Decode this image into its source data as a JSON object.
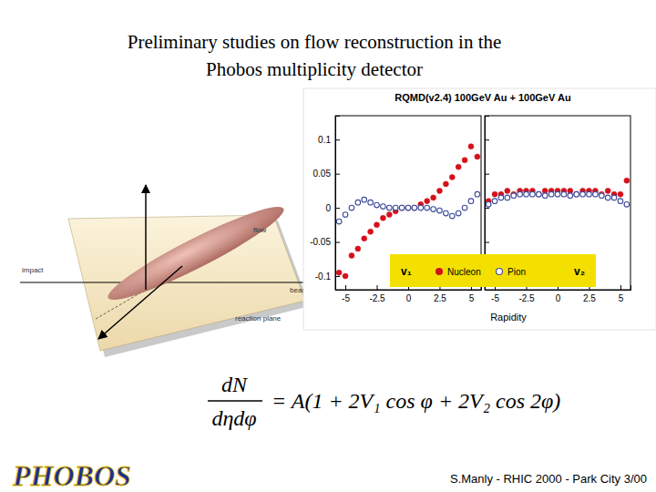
{
  "slide": {
    "title": [
      "Preliminary studies on flow reconstruction in the",
      "Phobos multiplicity detector"
    ],
    "footer": "S.Manly - RHIC 2000 - Park City 3/00",
    "logo": "PHOBOS"
  },
  "diagram": {
    "labels": [
      "impact",
      "flow",
      "beam",
      "reaction plane"
    ]
  },
  "figure": {
    "header": "RQMD(v2.4) 100GeV Au + 100GeV Au",
    "x_label": "Rapidity"
  },
  "formula": {
    "numerator": "dN",
    "denominator": "dηdφ",
    "rhs": "= A(1 + 2V₁ cos φ + 2V₂ cos 2φ)"
  },
  "chart_data": [
    {
      "type": "scatter",
      "title": "v₁",
      "legend": "bottom",
      "x": [
        -5.5,
        -5,
        -4.5,
        -4,
        -3.5,
        -3,
        -2.5,
        -2,
        -1.5,
        -1,
        -0.5,
        0,
        0.5,
        1,
        1.5,
        2,
        2.5,
        3,
        3.5,
        4,
        4.5,
        5,
        5.5
      ],
      "xlim": [
        -5.8,
        5.8
      ],
      "xticks": [
        -5,
        -2.5,
        0,
        2.5,
        5
      ],
      "ylim": [
        -0.12,
        0.135
      ],
      "yticks": [
        -0.1,
        -0.05,
        0,
        0.05,
        0.1
      ],
      "series": [
        {
          "name": "Nucleon",
          "color": "#d4111b",
          "marker": "circle",
          "values": [
            -0.095,
            -0.1,
            -0.07,
            -0.06,
            -0.045,
            -0.035,
            -0.025,
            -0.015,
            -0.01,
            -0.005,
            0,
            0,
            0,
            0.005,
            0.01,
            0.015,
            0.025,
            0.035,
            0.045,
            0.06,
            0.07,
            0.09,
            0.075
          ]
        },
        {
          "name": "Pion",
          "color": "#3b4a9c",
          "marker": "open-circle",
          "values": [
            -0.02,
            -0.01,
            0,
            0.008,
            0.012,
            0.008,
            0.004,
            0.002,
            0,
            0,
            0,
            0,
            0,
            0,
            0,
            -0.002,
            -0.004,
            -0.008,
            -0.012,
            -0.008,
            0,
            0.01,
            0.02
          ]
        }
      ]
    },
    {
      "type": "scatter",
      "title": "v₂",
      "tick_labels": "x",
      "x": [
        -5.5,
        -5,
        -4.5,
        -4,
        -3.5,
        -3,
        -2.5,
        -2,
        -1.5,
        -1,
        -0.5,
        0,
        0.5,
        1,
        1.5,
        2,
        2.5,
        3,
        3.5,
        4,
        4.5,
        5,
        5.5
      ],
      "xlim": [
        -5.8,
        5.8
      ],
      "xticks": [
        -5,
        -2.5,
        0,
        2.5,
        5
      ],
      "ylim": [
        -0.12,
        0.135
      ],
      "yticks": [
        -0.1,
        -0.05,
        0,
        0.05,
        0.1
      ],
      "series": [
        {
          "color": "#d4111b",
          "marker": "circle",
          "values": [
            0.01,
            0.02,
            0.02,
            0.025,
            0.02,
            0.025,
            0.025,
            0.025,
            0.02,
            0.025,
            0.025,
            0.025,
            0.025,
            0.025,
            0.02,
            0.025,
            0.025,
            0.025,
            0.02,
            0.025,
            0.02,
            0.02,
            0.04
          ]
        },
        {
          "color": "#3b4a9c",
          "marker": "open-circle",
          "values": [
            0.005,
            0.01,
            0.015,
            0.015,
            0.018,
            0.02,
            0.02,
            0.02,
            0.02,
            0.018,
            0.02,
            0.02,
            0.02,
            0.018,
            0.02,
            0.02,
            0.02,
            0.02,
            0.018,
            0.015,
            0.015,
            0.01,
            0.005
          ]
        }
      ]
    }
  ]
}
